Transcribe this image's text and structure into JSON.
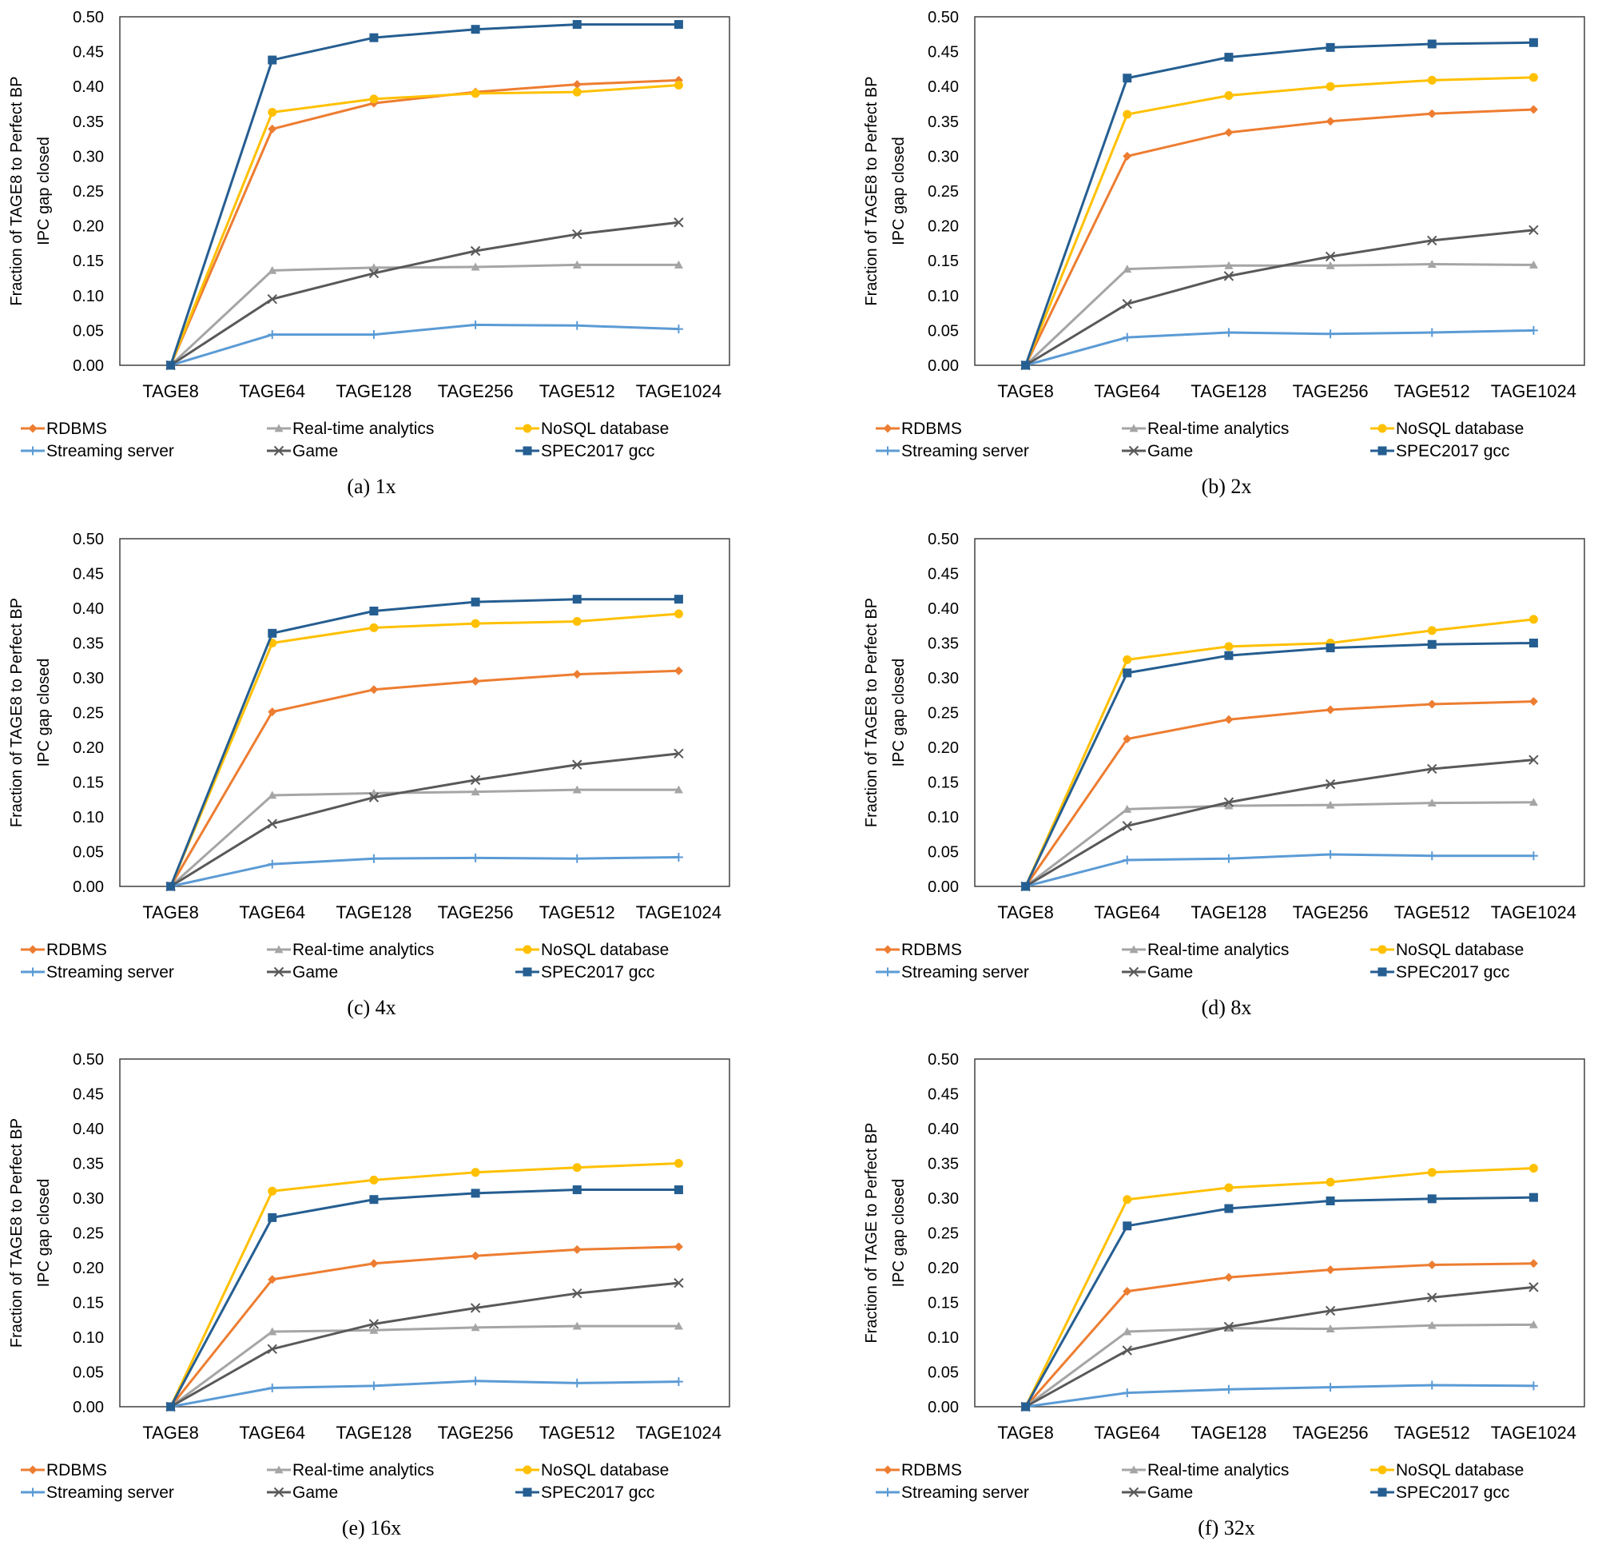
{
  "series_styles": [
    {
      "name": "RDBMS",
      "color": "#ED7D31",
      "marker": "diamond"
    },
    {
      "name": "Real-time analytics",
      "color": "#A5A5A5",
      "marker": "triangle"
    },
    {
      "name": "NoSQL database",
      "color": "#FFC000",
      "marker": "circle"
    },
    {
      "name": "Streaming server",
      "color": "#5B9BD5",
      "marker": "plus"
    },
    {
      "name": "Game",
      "color": "#595959",
      "marker": "x"
    },
    {
      "name": "SPEC2017 gcc",
      "color": "#255E91",
      "marker": "square"
    }
  ],
  "chart_data": [
    {
      "type": "line",
      "caption": "(a) 1x",
      "ylabel_line1": "Fraction of TAGE8 to Perfect BP",
      "ylabel_line2": "IPC gap closed",
      "categories": [
        "TAGE8",
        "TAGE64",
        "TAGE128",
        "TAGE256",
        "TAGE512",
        "TAGE1024"
      ],
      "ylim": [
        0,
        0.5
      ],
      "yticks": [
        "0.00",
        "0.05",
        "0.10",
        "0.15",
        "0.20",
        "0.25",
        "0.30",
        "0.35",
        "0.40",
        "0.45",
        "0.50"
      ],
      "grid": false,
      "legend_position": "bottom",
      "series": [
        {
          "name": "RDBMS",
          "values": [
            0,
            0.339,
            0.376,
            0.392,
            0.403,
            0.409
          ]
        },
        {
          "name": "Real-time analytics",
          "values": [
            0,
            0.136,
            0.14,
            0.141,
            0.144,
            0.144
          ]
        },
        {
          "name": "NoSQL database",
          "values": [
            0,
            0.363,
            0.382,
            0.39,
            0.392,
            0.402
          ]
        },
        {
          "name": "Streaming server",
          "values": [
            0,
            0.044,
            0.044,
            0.058,
            0.057,
            0.052
          ]
        },
        {
          "name": "Game",
          "values": [
            0,
            0.095,
            0.132,
            0.164,
            0.188,
            0.205
          ]
        },
        {
          "name": "SPEC2017 gcc",
          "values": [
            0,
            0.438,
            0.47,
            0.482,
            0.489,
            0.489
          ]
        }
      ]
    },
    {
      "type": "line",
      "caption": "(b) 2x",
      "ylabel_line1": "Fraction of TAGE8 to Perfect BP",
      "ylabel_line2": "IPC gap closed",
      "categories": [
        "TAGE8",
        "TAGE64",
        "TAGE128",
        "TAGE256",
        "TAGE512",
        "TAGE1024"
      ],
      "ylim": [
        0,
        0.5
      ],
      "yticks": [
        "0.00",
        "0.05",
        "0.10",
        "0.15",
        "0.20",
        "0.25",
        "0.30",
        "0.35",
        "0.40",
        "0.45",
        "0.50"
      ],
      "grid": false,
      "legend_position": "bottom",
      "series": [
        {
          "name": "RDBMS",
          "values": [
            0,
            0.3,
            0.334,
            0.35,
            0.361,
            0.367
          ]
        },
        {
          "name": "Real-time analytics",
          "values": [
            0,
            0.138,
            0.143,
            0.143,
            0.145,
            0.144
          ]
        },
        {
          "name": "NoSQL database",
          "values": [
            0,
            0.36,
            0.387,
            0.4,
            0.409,
            0.413
          ]
        },
        {
          "name": "Streaming server",
          "values": [
            0,
            0.04,
            0.047,
            0.045,
            0.047,
            0.05
          ]
        },
        {
          "name": "Game",
          "values": [
            0,
            0.088,
            0.128,
            0.156,
            0.179,
            0.194
          ]
        },
        {
          "name": "SPEC2017 gcc",
          "values": [
            0,
            0.412,
            0.442,
            0.456,
            0.461,
            0.463
          ]
        }
      ]
    },
    {
      "type": "line",
      "caption": "(c) 4x",
      "ylabel_line1": "Fraction of TAGE8 to Perfect BP",
      "ylabel_line2": "IPC gap closed",
      "categories": [
        "TAGE8",
        "TAGE64",
        "TAGE128",
        "TAGE256",
        "TAGE512",
        "TAGE1024"
      ],
      "ylim": [
        0,
        0.5
      ],
      "yticks": [
        "0.00",
        "0.05",
        "0.10",
        "0.15",
        "0.20",
        "0.25",
        "0.30",
        "0.35",
        "0.40",
        "0.45",
        "0.50"
      ],
      "grid": false,
      "legend_position": "bottom",
      "series": [
        {
          "name": "RDBMS",
          "values": [
            0,
            0.251,
            0.283,
            0.295,
            0.305,
            0.31
          ]
        },
        {
          "name": "Real-time analytics",
          "values": [
            0,
            0.131,
            0.134,
            0.136,
            0.139,
            0.139
          ]
        },
        {
          "name": "NoSQL database",
          "values": [
            0,
            0.35,
            0.372,
            0.378,
            0.381,
            0.392
          ]
        },
        {
          "name": "Streaming server",
          "values": [
            0,
            0.032,
            0.04,
            0.041,
            0.04,
            0.042
          ]
        },
        {
          "name": "Game",
          "values": [
            0,
            0.09,
            0.128,
            0.153,
            0.175,
            0.191
          ]
        },
        {
          "name": "SPEC2017 gcc",
          "values": [
            0,
            0.364,
            0.396,
            0.409,
            0.413,
            0.413
          ]
        }
      ]
    },
    {
      "type": "line",
      "caption": "(d) 8x",
      "ylabel_line1": "Fraction of TAGE8 to Perfect BP",
      "ylabel_line2": "IPC gap closed",
      "categories": [
        "TAGE8",
        "TAGE64",
        "TAGE128",
        "TAGE256",
        "TAGE512",
        "TAGE1024"
      ],
      "ylim": [
        0,
        0.5
      ],
      "yticks": [
        "0.00",
        "0.05",
        "0.10",
        "0.15",
        "0.20",
        "0.25",
        "0.30",
        "0.35",
        "0.40",
        "0.45",
        "0.50"
      ],
      "grid": false,
      "legend_position": "bottom",
      "series": [
        {
          "name": "RDBMS",
          "values": [
            0,
            0.212,
            0.24,
            0.254,
            0.262,
            0.266
          ]
        },
        {
          "name": "Real-time analytics",
          "values": [
            0,
            0.111,
            0.116,
            0.117,
            0.12,
            0.121
          ]
        },
        {
          "name": "NoSQL database",
          "values": [
            0,
            0.326,
            0.345,
            0.35,
            0.368,
            0.384
          ]
        },
        {
          "name": "Streaming server",
          "values": [
            0,
            0.038,
            0.04,
            0.046,
            0.044,
            0.044
          ]
        },
        {
          "name": "Game",
          "values": [
            0,
            0.087,
            0.121,
            0.147,
            0.169,
            0.182
          ]
        },
        {
          "name": "SPEC2017 gcc",
          "values": [
            0,
            0.307,
            0.332,
            0.343,
            0.348,
            0.35
          ]
        }
      ]
    },
    {
      "type": "line",
      "caption": "(e) 16x",
      "ylabel_line1": "Fraction of TAGE8 to Perfect BP",
      "ylabel_line2": "IPC gap closed",
      "categories": [
        "TAGE8",
        "TAGE64",
        "TAGE128",
        "TAGE256",
        "TAGE512",
        "TAGE1024"
      ],
      "ylim": [
        0,
        0.5
      ],
      "yticks": [
        "0.00",
        "0.05",
        "0.10",
        "0.15",
        "0.20",
        "0.25",
        "0.30",
        "0.35",
        "0.40",
        "0.45",
        "0.50"
      ],
      "grid": false,
      "legend_position": "bottom",
      "series": [
        {
          "name": "RDBMS",
          "values": [
            0,
            0.183,
            0.206,
            0.217,
            0.226,
            0.23
          ]
        },
        {
          "name": "Real-time analytics",
          "values": [
            0,
            0.108,
            0.11,
            0.114,
            0.116,
            0.116
          ]
        },
        {
          "name": "NoSQL database",
          "values": [
            0,
            0.31,
            0.326,
            0.337,
            0.344,
            0.35
          ]
        },
        {
          "name": "Streaming server",
          "values": [
            0,
            0.027,
            0.03,
            0.037,
            0.034,
            0.036
          ]
        },
        {
          "name": "Game",
          "values": [
            0,
            0.083,
            0.119,
            0.142,
            0.163,
            0.178
          ]
        },
        {
          "name": "SPEC2017 gcc",
          "values": [
            0,
            0.272,
            0.298,
            0.307,
            0.312,
            0.312
          ]
        }
      ]
    },
    {
      "type": "line",
      "caption": "(f) 32x",
      "ylabel_line1": "Fraction of TAGE to Perfect BP",
      "ylabel_line2": "IPC gap closed",
      "categories": [
        "TAGE8",
        "TAGE64",
        "TAGE128",
        "TAGE256",
        "TAGE512",
        "TAGE1024"
      ],
      "ylim": [
        0,
        0.5
      ],
      "yticks": [
        "0.00",
        "0.05",
        "0.10",
        "0.15",
        "0.20",
        "0.25",
        "0.30",
        "0.35",
        "0.40",
        "0.45",
        "0.50"
      ],
      "grid": false,
      "legend_position": "bottom",
      "series": [
        {
          "name": "RDBMS",
          "values": [
            0,
            0.166,
            0.186,
            0.197,
            0.204,
            0.206
          ]
        },
        {
          "name": "Real-time analytics",
          "values": [
            0,
            0.108,
            0.113,
            0.112,
            0.117,
            0.118
          ]
        },
        {
          "name": "NoSQL database",
          "values": [
            0,
            0.298,
            0.315,
            0.323,
            0.337,
            0.343
          ]
        },
        {
          "name": "Streaming server",
          "values": [
            0,
            0.02,
            0.025,
            0.028,
            0.031,
            0.03
          ]
        },
        {
          "name": "Game",
          "values": [
            0,
            0.081,
            0.115,
            0.138,
            0.157,
            0.172
          ]
        },
        {
          "name": "SPEC2017 gcc",
          "values": [
            0,
            0.26,
            0.285,
            0.296,
            0.299,
            0.301
          ]
        }
      ]
    }
  ]
}
